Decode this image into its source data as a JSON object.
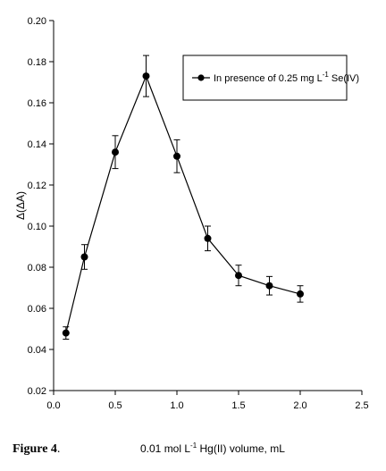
{
  "chart_data": {
    "type": "line",
    "title": "",
    "xlabel": "0.01 mol L-1 Hg(II) volume, mL",
    "xlabel_parts": {
      "before": "0.01 mol L",
      "sup": "-1",
      "after": " Hg(II) volume, mL"
    },
    "ylabel": "Δ(ΔA)",
    "xlim": [
      0.0,
      2.5
    ],
    "ylim": [
      0.02,
      0.2
    ],
    "x_ticks": [
      0.0,
      0.5,
      1.0,
      1.5,
      2.0,
      2.5
    ],
    "x_tick_labels": [
      "0.0",
      "0.5",
      "1.0",
      "1.5",
      "2.0",
      "2.5"
    ],
    "y_ticks": [
      0.02,
      0.04,
      0.06,
      0.08,
      0.1,
      0.12,
      0.14,
      0.16,
      0.18,
      0.2
    ],
    "y_tick_labels": [
      "0.02",
      "0.04",
      "0.06",
      "0.08",
      "0.10",
      "0.12",
      "0.14",
      "0.16",
      "0.18",
      "0.20"
    ],
    "grid": false,
    "legend_position": "top-right",
    "series": [
      {
        "name": "In presence of 0.25 mg L-1 Se(IV)",
        "name_parts": {
          "before": "In presence of 0.25 mg L",
          "sup": "-1",
          "after": " Se(IV)"
        },
        "marker": "filled-circle",
        "color": "#000000",
        "x": [
          0.1,
          0.25,
          0.5,
          0.75,
          1.0,
          1.25,
          1.5,
          1.75,
          2.0
        ],
        "y": [
          0.048,
          0.085,
          0.136,
          0.173,
          0.134,
          0.094,
          0.076,
          0.071,
          0.067
        ],
        "error": [
          0.003,
          0.006,
          0.008,
          0.01,
          0.008,
          0.006,
          0.005,
          0.0045,
          0.004
        ]
      }
    ]
  },
  "caption": {
    "label": "Figure 4",
    "suffix": "."
  }
}
